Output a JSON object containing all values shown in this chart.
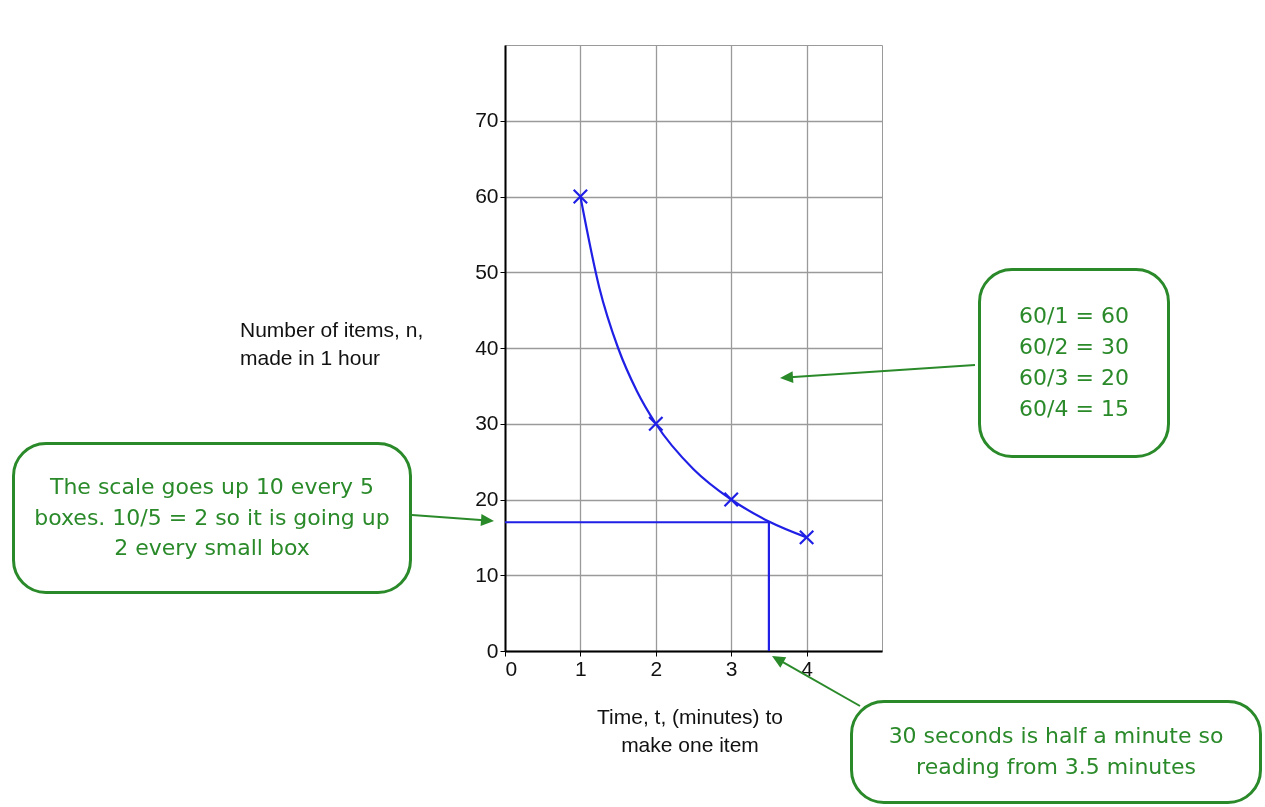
{
  "chart_data": {
    "type": "scatter",
    "xlabel": "Time, t, (minutes) to make one item",
    "ylabel": "Number of items, n, made in 1 hour",
    "xlim": [
      0,
      5
    ],
    "ylim": [
      0,
      80
    ],
    "xticks": [
      0,
      1,
      2,
      3,
      4
    ],
    "yticks": [
      0,
      10,
      20,
      30,
      40,
      50,
      60,
      70
    ],
    "grid": true,
    "series": [
      {
        "color": "#1f1fe6",
        "marker": "cross",
        "x": [
          1,
          2,
          3,
          4
        ],
        "values": [
          60,
          30,
          20,
          15
        ]
      },
      {
        "type": "line",
        "color": "#1f1fe6",
        "marker": "none",
        "x": [
          1,
          1.25,
          1.5,
          1.75,
          2,
          2.5,
          3,
          3.5,
          4
        ],
        "values": [
          60,
          48,
          40,
          34.3,
          30,
          24,
          20,
          17.1,
          15
        ]
      },
      {
        "type": "line",
        "color": "#1f1fe6",
        "marker": "none",
        "x": [
          0,
          3.5,
          3.5
        ],
        "values": [
          17,
          17,
          0
        ]
      }
    ],
    "annotations": [
      "60/1 = 60\n60/2 = 30\n60/3 = 20\n60/4 = 15",
      "The scale goes up 10 every 5 boxes. 10/5 = 2 so it is going up 2 every small box",
      "30 seconds is half a minute so reading from 3.5 minutes"
    ]
  }
}
